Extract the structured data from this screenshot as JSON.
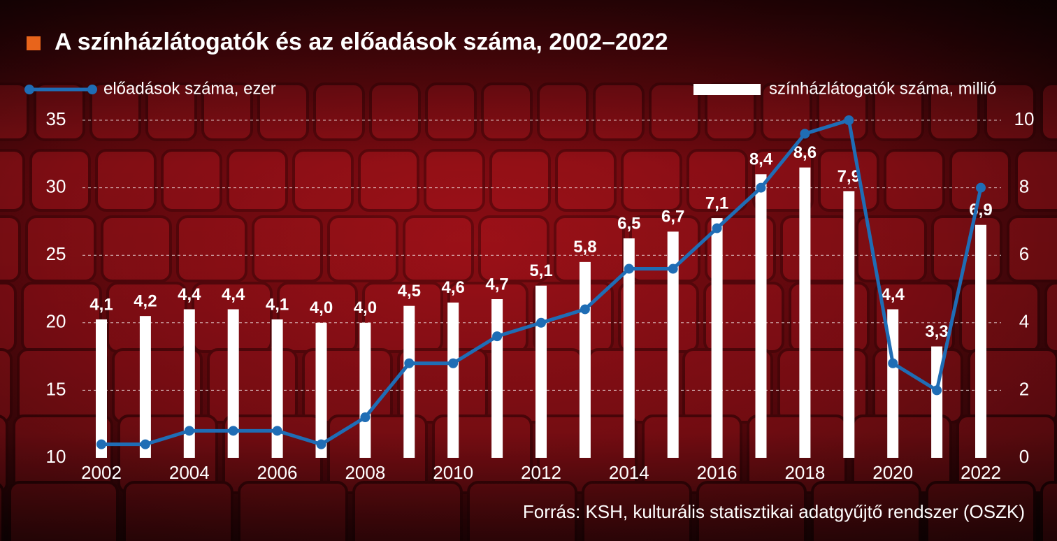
{
  "chart_data": {
    "type": "bar",
    "title": "A színházlátogatók és az előadások száma, 2002–2022",
    "source": "Forrás: KSH, kulturális statisztikai adatgyűjtő rendszer (OSZK)",
    "categories": [
      "2002",
      null,
      "2004",
      null,
      "2006",
      null,
      "2008",
      null,
      "2010",
      null,
      "2012",
      null,
      "2014",
      null,
      "2016",
      null,
      "2018",
      null,
      "2020",
      null,
      "2022"
    ],
    "series": [
      {
        "name": "előadások száma, ezer",
        "type": "line",
        "axis": "y",
        "color": "#1f6db5",
        "values": [
          11,
          11,
          12,
          12,
          12,
          11,
          13,
          17,
          17,
          19,
          20,
          21,
          24,
          24,
          27,
          30,
          34,
          35,
          17,
          15,
          30
        ]
      },
      {
        "name": "színházlátogatók száma, millió",
        "type": "bar",
        "axis": "y2",
        "color": "#ffffff",
        "values": [
          4.1,
          4.2,
          4.4,
          4.4,
          4.1,
          4.0,
          4.0,
          4.5,
          4.6,
          4.7,
          5.1,
          5.8,
          6.5,
          6.7,
          7.1,
          8.4,
          8.6,
          7.9,
          4.4,
          3.3,
          6.9
        ],
        "value_labels": [
          "4,1",
          "4,2",
          "4,4",
          "4,4",
          "4,1",
          "4,0",
          "4,0",
          "4,5",
          "4,6",
          "4,7",
          "5,1",
          "5,8",
          "6,5",
          "6,7",
          "7,1",
          "8,4",
          "8,6",
          "7,9",
          "4,4",
          "3,3",
          "6,9"
        ]
      }
    ],
    "ylim": [
      10,
      35
    ],
    "yticks": [
      10,
      15,
      20,
      25,
      30,
      35
    ],
    "y2lim": [
      0,
      10
    ],
    "y2ticks": [
      0,
      2,
      4,
      6,
      8,
      10
    ],
    "grid": true,
    "title_marker_color": "#e8641b"
  }
}
